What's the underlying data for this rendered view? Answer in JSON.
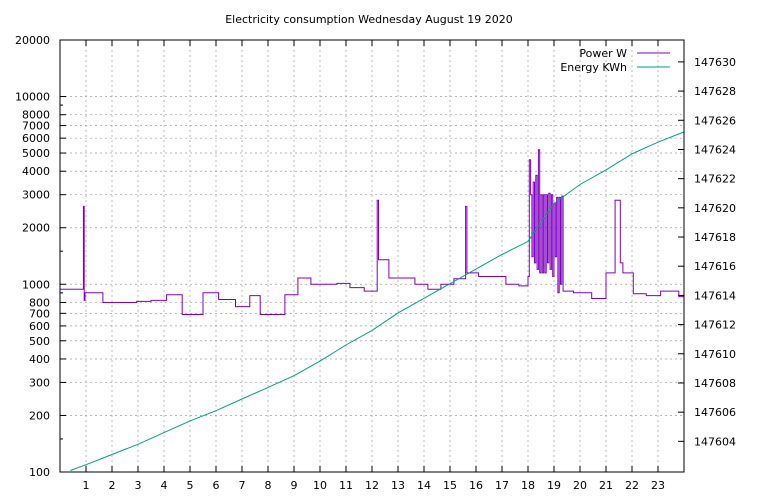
{
  "chart_data": {
    "type": "line",
    "title": "Electricity consumption Wednesday August 19 2020",
    "x": {
      "range": [
        0,
        24
      ],
      "ticks": [
        1,
        2,
        3,
        4,
        5,
        6,
        7,
        8,
        9,
        10,
        11,
        12,
        13,
        14,
        15,
        16,
        17,
        18,
        19,
        20,
        21,
        22,
        23
      ]
    },
    "y_left": {
      "scale": "log",
      "range": [
        100,
        20000
      ],
      "ticks": [
        100,
        200,
        300,
        400,
        500,
        600,
        700,
        800,
        1000,
        2000,
        3000,
        4000,
        5000,
        6000,
        7000,
        8000,
        10000,
        20000
      ]
    },
    "y_right": {
      "scale": "linear",
      "range": [
        147601.9,
        147631.5
      ],
      "ticks": [
        147604,
        147606,
        147608,
        147610,
        147612,
        147614,
        147616,
        147618,
        147620,
        147622,
        147624,
        147626,
        147628,
        147630
      ]
    },
    "grid": true,
    "legend_position": "top-right",
    "series": [
      {
        "name": "Power W",
        "axis": "left",
        "color": "#8000c0",
        "style": "steps",
        "points": [
          [
            0,
            940
          ],
          [
            0.85,
            940
          ],
          [
            0.9,
            2600
          ],
          [
            0.93,
            820
          ],
          [
            0.96,
            900
          ],
          [
            1.6,
            900
          ],
          [
            1.65,
            800
          ],
          [
            2.9,
            800
          ],
          [
            2.95,
            810
          ],
          [
            3.5,
            820
          ],
          [
            4.05,
            820
          ],
          [
            4.1,
            880
          ],
          [
            4.65,
            880
          ],
          [
            4.7,
            690
          ],
          [
            5.45,
            690
          ],
          [
            5.5,
            900
          ],
          [
            6.05,
            900
          ],
          [
            6.1,
            830
          ],
          [
            6.7,
            830
          ],
          [
            6.75,
            760
          ],
          [
            7.25,
            760
          ],
          [
            7.3,
            870
          ],
          [
            7.65,
            870
          ],
          [
            7.7,
            690
          ],
          [
            8.6,
            690
          ],
          [
            8.65,
            880
          ],
          [
            9.1,
            880
          ],
          [
            9.15,
            1080
          ],
          [
            9.6,
            1080
          ],
          [
            9.65,
            1000
          ],
          [
            10.6,
            1000
          ],
          [
            10.65,
            1010
          ],
          [
            11.1,
            1010
          ],
          [
            11.15,
            960
          ],
          [
            11.65,
            960
          ],
          [
            11.7,
            920
          ],
          [
            12.15,
            920
          ],
          [
            12.2,
            2800
          ],
          [
            12.25,
            1350
          ],
          [
            12.6,
            1350
          ],
          [
            12.65,
            1080
          ],
          [
            13.6,
            1080
          ],
          [
            13.65,
            1000
          ],
          [
            14.1,
            1000
          ],
          [
            14.15,
            940
          ],
          [
            14.6,
            940
          ],
          [
            14.65,
            1000
          ],
          [
            15.1,
            1000
          ],
          [
            15.15,
            1070
          ],
          [
            15.55,
            1070
          ],
          [
            15.6,
            2600
          ],
          [
            15.65,
            1150
          ],
          [
            16.05,
            1150
          ],
          [
            16.1,
            1100
          ],
          [
            17.1,
            1100
          ],
          [
            17.15,
            1000
          ],
          [
            17.6,
            1000
          ],
          [
            17.65,
            980
          ],
          [
            17.95,
            980
          ],
          [
            18.0,
            1100
          ],
          [
            18.05,
            4600
          ],
          [
            18.1,
            3000
          ],
          [
            18.15,
            1400
          ],
          [
            18.2,
            3500
          ],
          [
            18.25,
            1300
          ],
          [
            18.3,
            3800
          ],
          [
            18.35,
            1200
          ],
          [
            18.4,
            5200
          ],
          [
            18.45,
            1150
          ],
          [
            18.5,
            3000
          ],
          [
            18.55,
            1150
          ],
          [
            18.6,
            3000
          ],
          [
            18.65,
            1150
          ],
          [
            18.7,
            3000
          ],
          [
            18.75,
            1300
          ],
          [
            18.8,
            3050
          ],
          [
            18.85,
            1200
          ],
          [
            18.9,
            3000
          ],
          [
            18.95,
            1100
          ],
          [
            19.0,
            2700
          ],
          [
            19.05,
            1400
          ],
          [
            19.1,
            2900
          ],
          [
            19.15,
            900
          ],
          [
            19.2,
            2900
          ],
          [
            19.25,
            1000
          ],
          [
            19.3,
            2950
          ],
          [
            19.35,
            920
          ],
          [
            19.7,
            920
          ],
          [
            19.75,
            900
          ],
          [
            20.4,
            900
          ],
          [
            20.45,
            840
          ],
          [
            20.95,
            840
          ],
          [
            21.0,
            1150
          ],
          [
            21.3,
            1150
          ],
          [
            21.35,
            2800
          ],
          [
            21.55,
            1300
          ],
          [
            21.65,
            1150
          ],
          [
            22.0,
            1150
          ],
          [
            22.05,
            890
          ],
          [
            22.5,
            890
          ],
          [
            22.55,
            870
          ],
          [
            23.05,
            870
          ],
          [
            23.1,
            920
          ],
          [
            23.75,
            920
          ],
          [
            23.8,
            860
          ],
          [
            24,
            860
          ]
        ]
      },
      {
        "name": "Energy KWh",
        "axis": "right",
        "color": "#00a080",
        "style": "line",
        "points": [
          [
            0.4,
            147602.0
          ],
          [
            1,
            147602.4
          ],
          [
            2,
            147603.1
          ],
          [
            3,
            147603.8
          ],
          [
            4,
            147604.6
          ],
          [
            5,
            147605.4
          ],
          [
            6,
            147606.1
          ],
          [
            7,
            147606.9
          ],
          [
            8,
            147607.7
          ],
          [
            9,
            147608.5
          ],
          [
            10,
            147609.5
          ],
          [
            11,
            147610.6
          ],
          [
            12,
            147611.6
          ],
          [
            13,
            147612.8
          ],
          [
            14,
            147613.8
          ],
          [
            15,
            147614.8
          ],
          [
            16,
            147615.8
          ],
          [
            17,
            147616.8
          ],
          [
            18,
            147617.7
          ],
          [
            19,
            147620.3
          ],
          [
            20,
            147621.6
          ],
          [
            21,
            147622.6
          ],
          [
            22,
            147623.7
          ],
          [
            23,
            147624.5
          ],
          [
            24,
            147625.2
          ]
        ]
      }
    ]
  }
}
